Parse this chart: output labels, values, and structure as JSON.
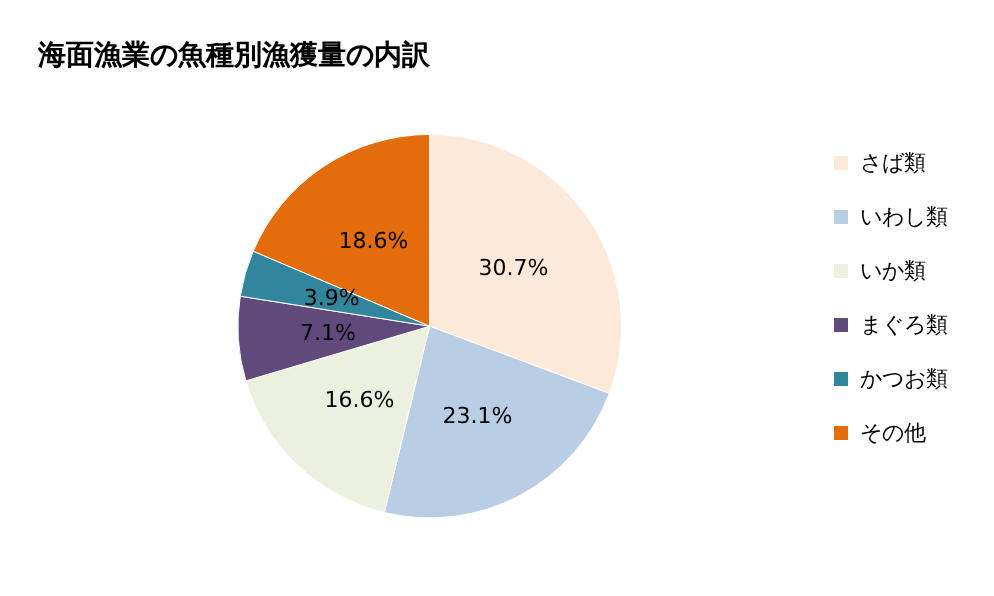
{
  "chart_data": {
    "type": "pie",
    "title": "海面漁業の魚種別漁獲量の内訳",
    "categories": [
      "さば類",
      "いわし類",
      "いか類",
      "まぐろ類",
      "かつお類",
      "その他"
    ],
    "values": [
      30.7,
      23.1,
      16.6,
      7.1,
      3.9,
      18.6
    ],
    "value_labels": [
      "30.7%",
      "23.1%",
      "16.6%",
      "7.1%",
      "3.9%",
      "18.6%"
    ],
    "colors": [
      "#fde9d9",
      "#b9cde5",
      "#ebf1de",
      "#604a7b",
      "#31859c",
      "#e46c0a"
    ],
    "legend": "right"
  }
}
